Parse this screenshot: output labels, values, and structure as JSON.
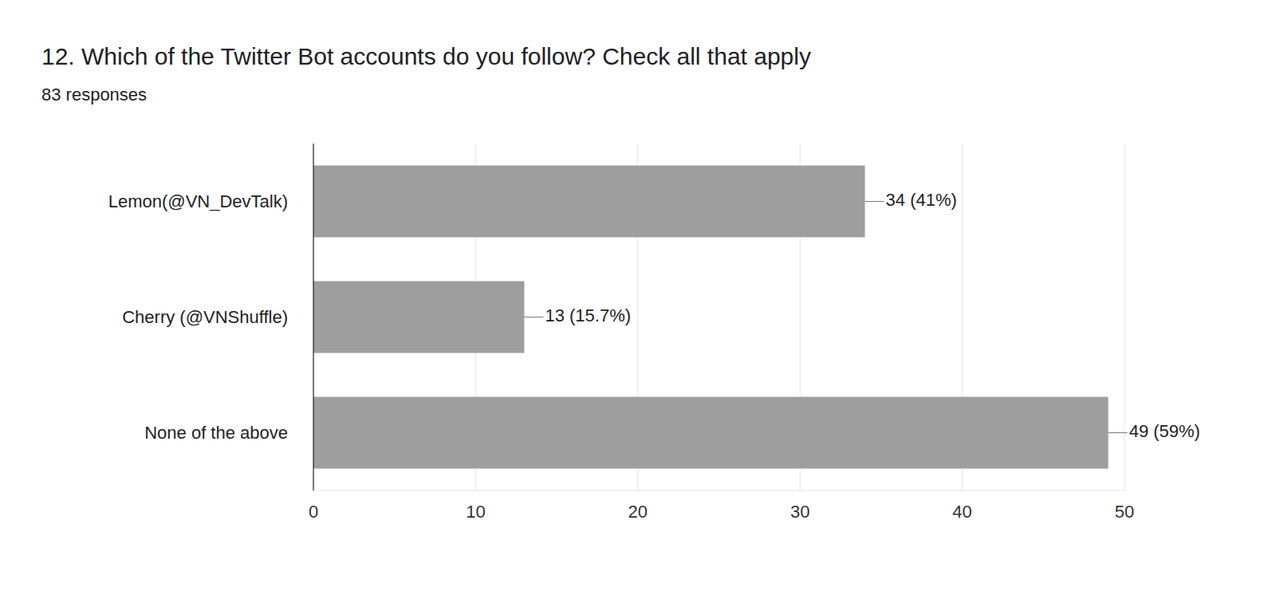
{
  "chart_data": {
    "type": "bar",
    "orientation": "horizontal",
    "title": "12. Which of the Twitter Bot accounts do you follow? Check all that apply",
    "subtitle": "83 responses",
    "categories": [
      "Lemon(@VN_DevTalk)",
      "Cherry (@VNShuffle)",
      "None of the above"
    ],
    "values": [
      34,
      13,
      49
    ],
    "value_labels": [
      "34 (41%)",
      "13 (15.7%)",
      "49 (59%)"
    ],
    "data_labels": true,
    "color": "#9e9e9e",
    "xlim": [
      0,
      50
    ],
    "xticks": [
      0,
      10,
      20,
      30,
      40,
      50
    ],
    "grid": true
  }
}
